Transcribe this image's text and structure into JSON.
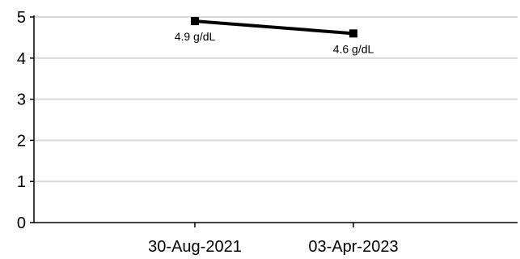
{
  "chart_data": {
    "type": "line",
    "title": "",
    "xlabel": "",
    "ylabel": "",
    "categories": [
      "30-Aug-2021",
      "03-Apr-2023"
    ],
    "series": [
      {
        "values": [
          4.9,
          4.6
        ],
        "data_labels": [
          "4.9 g/dL",
          "4.6 g/dL"
        ],
        "color": "#000000",
        "marker": "square"
      }
    ],
    "ylim": [
      0,
      5
    ],
    "yticks": [
      "0",
      "1",
      "2",
      "3",
      "4",
      "5"
    ],
    "grid": true,
    "grid_color": "#d9d9d9",
    "axis_color": "#000000",
    "legend": "none"
  }
}
